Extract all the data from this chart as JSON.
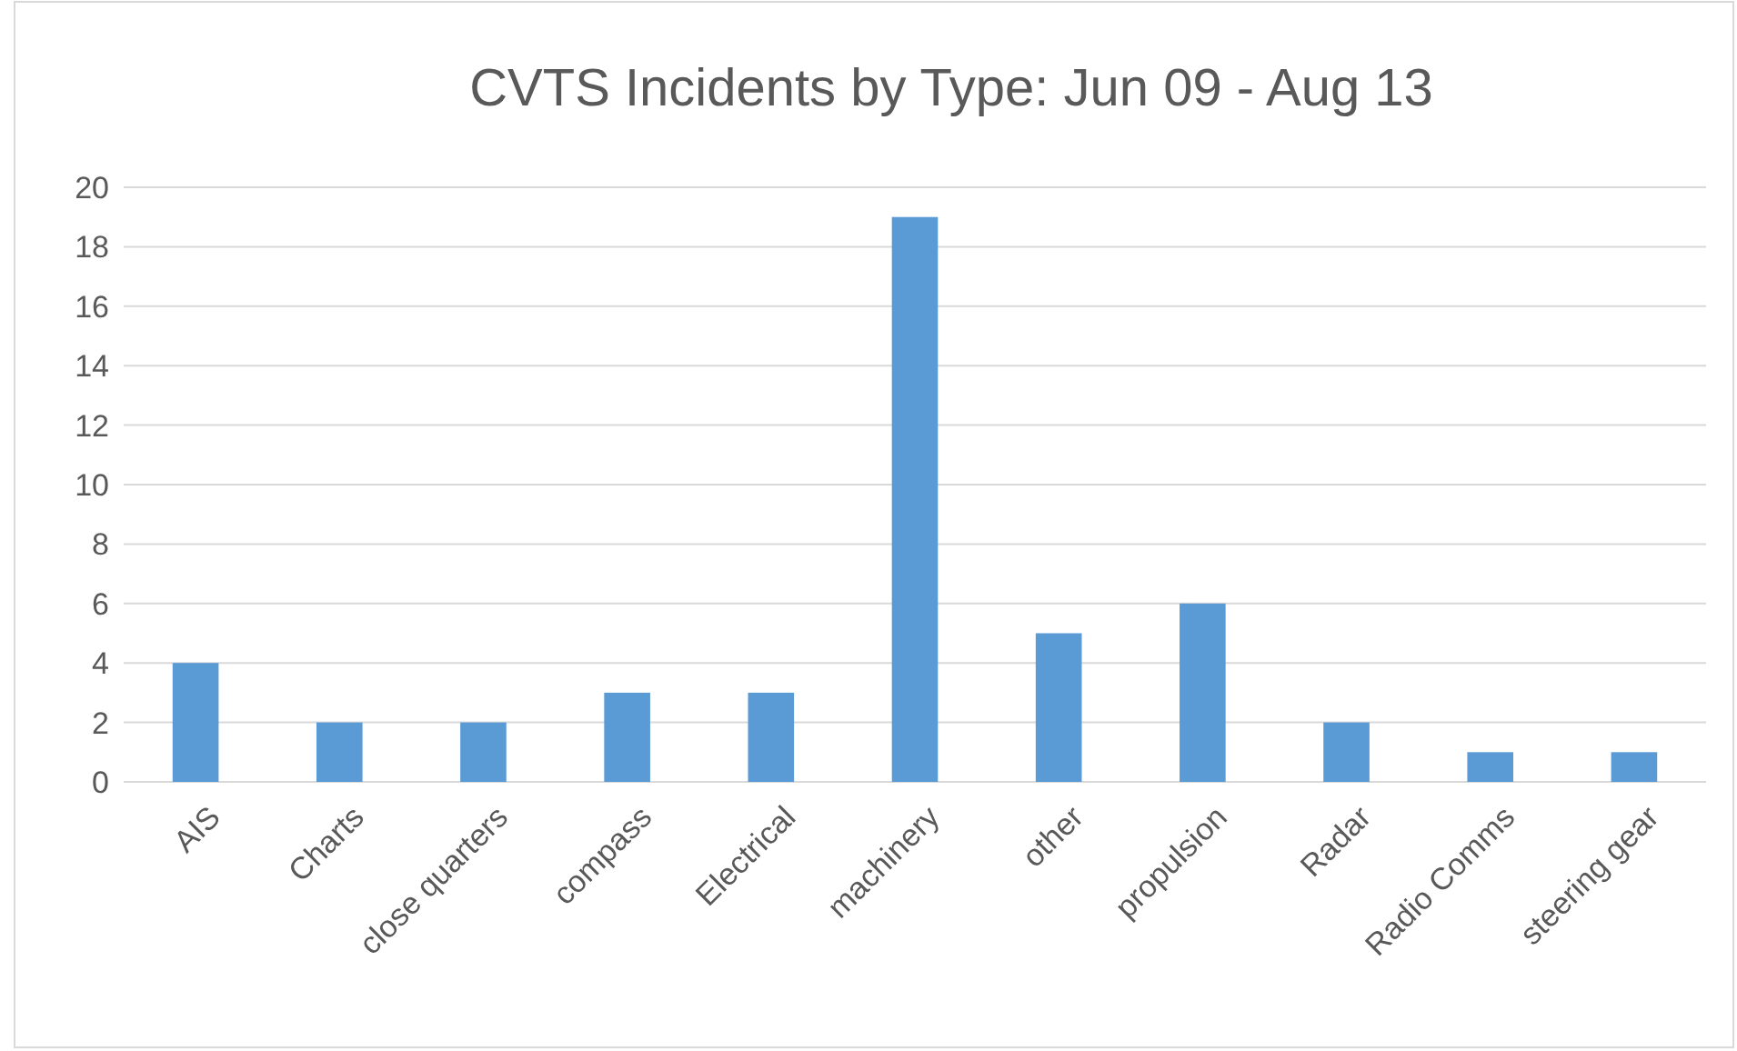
{
  "chart_data": {
    "type": "bar",
    "title": "CVTS Incidents by Type: Jun 09 - Aug 13",
    "categories": [
      "AIS",
      "Charts",
      "close quarters",
      "compass",
      "Electrical",
      "machinery",
      "other",
      "propulsion",
      "Radar",
      "Radio Comms",
      "steering gear"
    ],
    "values": [
      4,
      2,
      2,
      3,
      3,
      19,
      5,
      6,
      2,
      1,
      1
    ],
    "color": "#5b9bd5",
    "ylim": [
      0,
      20
    ],
    "yticks": [
      0,
      2,
      4,
      6,
      8,
      10,
      12,
      14,
      16,
      18,
      20
    ],
    "grid": "y"
  }
}
